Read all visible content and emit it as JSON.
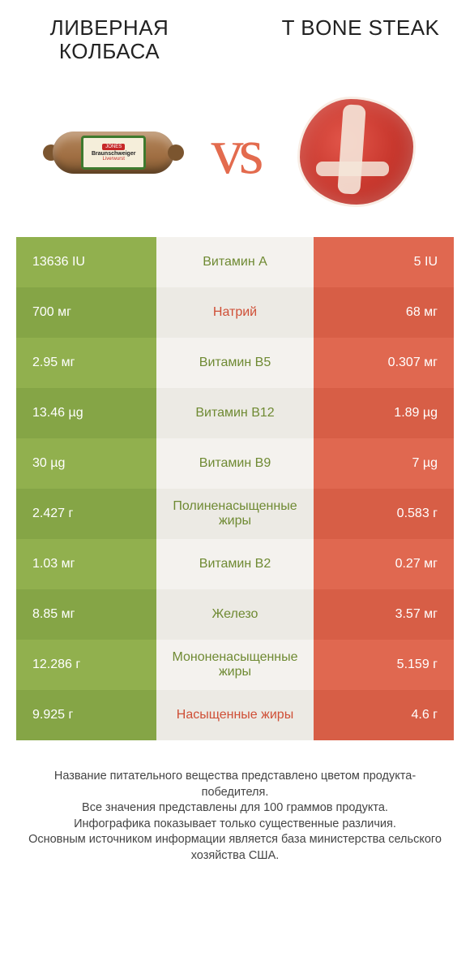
{
  "titles": {
    "left": "ЛИВЕРНАЯ КОЛБАСА",
    "right": "T BONE STEAK"
  },
  "vs_label": "vs",
  "footer": "Название питательного вещества представлено цветом продукта-победителя.\nВсе значения представлены для 100 граммов продукта.\nИнфографика показывает только существенные различия.\nОсновным источником информации является база министерства сельского хозяйства США.",
  "colors": {
    "left": [
      "#91b04e",
      "#85a546",
      "#91b04e",
      "#85a546",
      "#91b04e",
      "#85a546",
      "#91b04e",
      "#85a546",
      "#91b04e",
      "#85a546"
    ],
    "right": [
      "#e06850",
      "#d75e46",
      "#e06850",
      "#d75e46",
      "#e06850",
      "#d75e46",
      "#e06850",
      "#d75e46",
      "#e06850",
      "#d75e46"
    ],
    "mid_bg": "#f4f2ee",
    "mid_bg_alt": "#eceae4",
    "label_win_left": "#6f8a33",
    "label_win_right": "#cf4f36"
  },
  "rows": [
    {
      "left": "13636 IU",
      "label": "Витамин A",
      "right": "5 IU",
      "winner": "left"
    },
    {
      "left": "700 мг",
      "label": "Натрий",
      "right": "68 мг",
      "winner": "right"
    },
    {
      "left": "2.95 мг",
      "label": "Витамин B5",
      "right": "0.307 мг",
      "winner": "left"
    },
    {
      "left": "13.46 µg",
      "label": "Витамин B12",
      "right": "1.89 µg",
      "winner": "left"
    },
    {
      "left": "30 µg",
      "label": "Витамин B9",
      "right": "7 µg",
      "winner": "left"
    },
    {
      "left": "2.427 г",
      "label": "Полиненасыщенные жиры",
      "right": "0.583 г",
      "winner": "left"
    },
    {
      "left": "1.03 мг",
      "label": "Витамин B2",
      "right": "0.27 мг",
      "winner": "left"
    },
    {
      "left": "8.85 мг",
      "label": "Железо",
      "right": "3.57 мг",
      "winner": "left"
    },
    {
      "left": "12.286 г",
      "label": "Мононенасыщенные жиры",
      "right": "5.159 г",
      "winner": "left"
    },
    {
      "left": "9.925 г",
      "label": "Насыщенные жиры",
      "right": "4.6 г",
      "winner": "right"
    }
  ]
}
